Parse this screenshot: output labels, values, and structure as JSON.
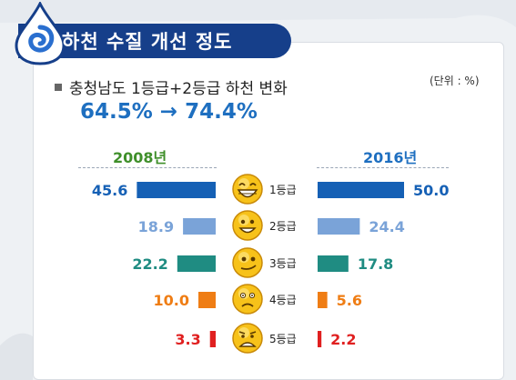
{
  "title": "하천 수질 개선 정도",
  "subtitle": "충청남도 1등급+2등급 하천 변화",
  "unit": "(단위 : %)",
  "change": "64.5% → 74.4%",
  "colors": {
    "grade1": "#1560b5",
    "grade2": "#7aa3d8",
    "grade3": "#1f8c82",
    "grade4": "#ef7d14",
    "grade5": "#e02020"
  },
  "chart_data": {
    "type": "bar",
    "categories": [
      "1등급",
      "2등급",
      "3등급",
      "4등급",
      "5등급"
    ],
    "series": [
      {
        "name": "2008년",
        "values": [
          45.6,
          18.9,
          22.2,
          10.0,
          3.3
        ]
      },
      {
        "name": "2016년",
        "values": [
          50.0,
          24.4,
          17.8,
          5.6,
          2.2
        ]
      }
    ],
    "value_labels": {
      "2008년": [
        "45.6",
        "18.9",
        "22.2",
        "10.0",
        "3.3"
      ],
      "2016년": [
        "50.0",
        "24.4",
        "17.8",
        "5.6",
        "2.2"
      ]
    },
    "icons": [
      "laughing-face-icon",
      "smiling-face-icon",
      "smirking-face-icon",
      "worried-face-icon",
      "frowning-face-icon"
    ]
  }
}
